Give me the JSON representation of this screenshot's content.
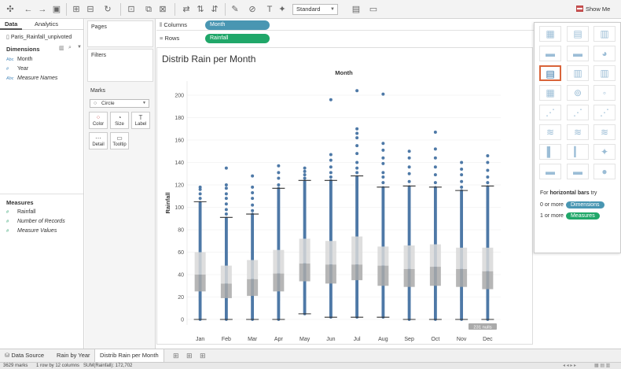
{
  "toolbar": {
    "style_value": "Standard",
    "show_me_label": "Show Me"
  },
  "left_pane": {
    "tabs": [
      "Data",
      "Analytics"
    ],
    "data_source": "Paris_Rainfall_unpivoted",
    "dimensions_header": "Dimensions",
    "dimensions": [
      {
        "type": "Abc",
        "name": "Month"
      },
      {
        "type": "#",
        "name": "Year"
      },
      {
        "type": "Abc",
        "name": "Measure Names"
      }
    ],
    "measures_header": "Measures",
    "measures": [
      {
        "type": "#",
        "name": "Rainfall"
      },
      {
        "type": "#",
        "name": "Number of Records"
      },
      {
        "type": "#",
        "name": "Measure Values"
      }
    ]
  },
  "cards": {
    "pages": "Pages",
    "filters": "Filters",
    "marks": "Marks",
    "mark_type": "Circle",
    "buttons": [
      "Color",
      "Size",
      "Label",
      "Detail",
      "Tooltip"
    ]
  },
  "shelves": {
    "columns_label": "Columns",
    "columns_pill": "Month",
    "rows_label": "Rows",
    "rows_pill": "Rainfall"
  },
  "sheet": {
    "title": "Distrib Rain per Month",
    "nulls_badge": "231 nulls"
  },
  "chart_data": {
    "type": "box",
    "title": "Month",
    "xlabel": "",
    "ylabel": "Rainfall",
    "ylim": [
      -5,
      215
    ],
    "yticks": [
      0,
      20,
      40,
      60,
      80,
      100,
      120,
      140,
      160,
      180,
      200
    ],
    "categories": [
      "Jan",
      "Feb",
      "Mar",
      "Apr",
      "May",
      "Jun",
      "Jul",
      "Aug",
      "Sep",
      "Oct",
      "Nov",
      "Dec"
    ],
    "series": [
      {
        "category": "Jan",
        "min": 0,
        "q1": 25,
        "median": 40,
        "q3": 60,
        "max": 105,
        "outliers": [
          108,
          112,
          116,
          118
        ]
      },
      {
        "category": "Feb",
        "min": 0,
        "q1": 19,
        "median": 32,
        "q3": 48,
        "max": 91,
        "outliers": [
          94,
          98,
          103,
          108,
          112,
          117,
          120,
          135
        ]
      },
      {
        "category": "Mar",
        "min": 0,
        "q1": 21,
        "median": 36,
        "q3": 53,
        "max": 94,
        "outliers": [
          97,
          102,
          108,
          113,
          118,
          128
        ]
      },
      {
        "category": "Apr",
        "min": 0,
        "q1": 25,
        "median": 41,
        "q3": 62,
        "max": 117,
        "outliers": [
          120,
          126,
          131,
          137
        ]
      },
      {
        "category": "May",
        "min": 5,
        "q1": 34,
        "median": 50,
        "q3": 72,
        "max": 124,
        "outliers": [
          126,
          129,
          132,
          135
        ]
      },
      {
        "category": "Jun",
        "min": 2,
        "q1": 32,
        "median": 49,
        "q3": 70,
        "max": 124,
        "outliers": [
          127,
          131,
          136,
          142,
          147,
          196
        ]
      },
      {
        "category": "Jul",
        "min": 2,
        "q1": 35,
        "median": 49,
        "q3": 74,
        "max": 128,
        "outliers": [
          131,
          135,
          140,
          148,
          155,
          162,
          166,
          170,
          204
        ]
      },
      {
        "category": "Aug",
        "min": 2,
        "q1": 30,
        "median": 48,
        "q3": 65,
        "max": 118,
        "outliers": [
          122,
          127,
          131,
          139,
          144,
          151,
          157,
          201
        ]
      },
      {
        "category": "Sep",
        "min": 0,
        "q1": 29,
        "median": 45,
        "q3": 66,
        "max": 119,
        "outliers": [
          123,
          130,
          136,
          144,
          150
        ]
      },
      {
        "category": "Oct",
        "min": 0,
        "q1": 30,
        "median": 47,
        "q3": 67,
        "max": 118,
        "outliers": [
          122,
          129,
          136,
          144,
          152,
          167
        ]
      },
      {
        "category": "Nov",
        "min": 0,
        "q1": 29,
        "median": 45,
        "q3": 64,
        "max": 115,
        "outliers": [
          118,
          123,
          129,
          134,
          140
        ]
      },
      {
        "category": "Dec",
        "min": 0,
        "q1": 27,
        "median": 43,
        "q3": 64,
        "max": 119,
        "outliers": [
          122,
          127,
          133,
          140,
          146
        ]
      }
    ],
    "colors": {
      "point": "#4e79a7",
      "box_low": "#a9a9a9",
      "box_high": "#d8d8d8",
      "whisker": "#333333"
    }
  },
  "showme": {
    "hint_prefix": "For ",
    "hint_bold": "horizontal bars",
    "hint_suffix": " try",
    "req1_prefix": "0 or more",
    "req1_pill": "Dimensions",
    "req2_prefix": "1 or more",
    "req2_pill": "Measures"
  },
  "bottom_tabs": [
    "Data Source",
    "Rain by Year",
    "Distrib Rain per Month"
  ],
  "status": {
    "marks": "3629 marks",
    "rows_cols": "1 row by 12 columns",
    "sum": "SUM(Rainfall): 172,702"
  }
}
